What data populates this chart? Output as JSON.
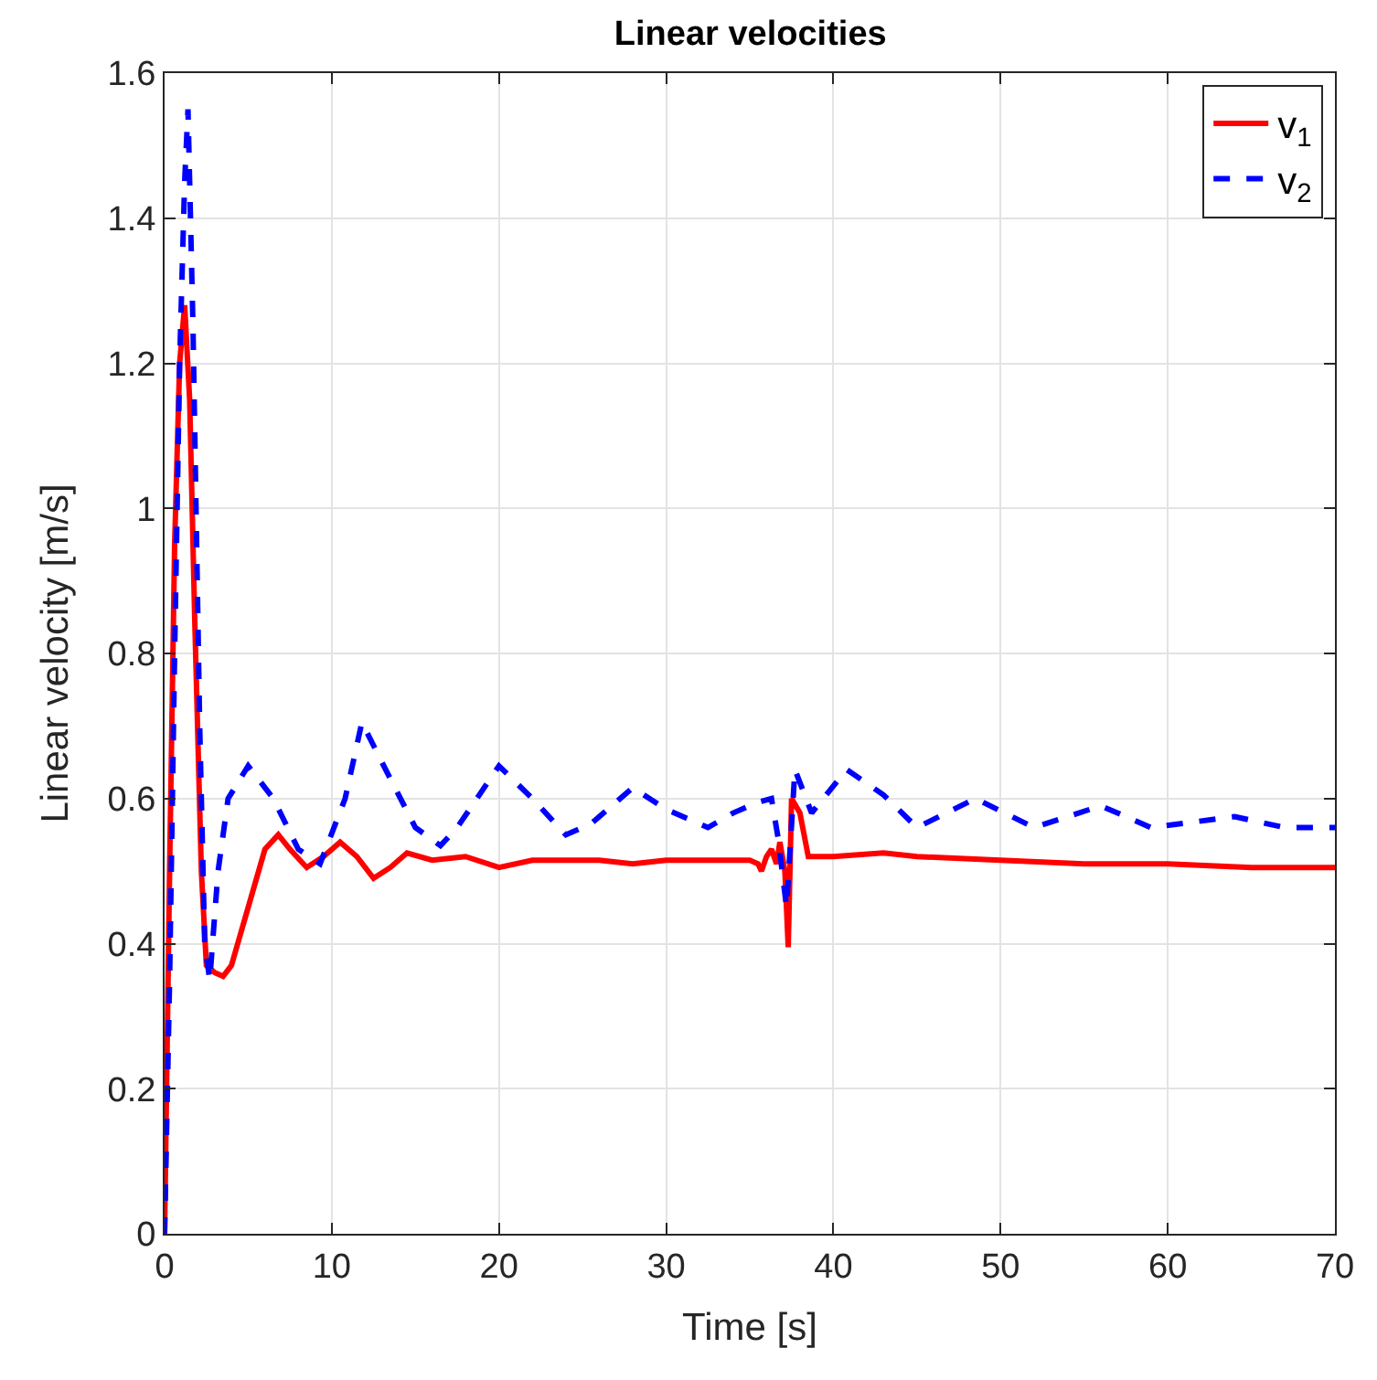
{
  "chart_data": {
    "type": "line",
    "title": "Linear velocities",
    "xlabel": "Time [s]",
    "ylabel": "Linear velocity [m/s]",
    "xlim": [
      0,
      70
    ],
    "ylim": [
      0,
      1.6
    ],
    "xticks": [
      0,
      10,
      20,
      30,
      40,
      50,
      60,
      70
    ],
    "yticks": [
      0,
      0.2,
      0.4,
      0.6,
      0.8,
      1,
      1.2,
      1.4,
      1.6
    ],
    "grid": true,
    "legend": "top right",
    "marker": "none",
    "series": [
      {
        "name": "v$_{1}$",
        "color": "#ff0000",
        "line_style": "solid",
        "x": [
          0,
          0.3,
          0.6,
          0.9,
          1.2,
          1.5,
          1.8,
          2.2,
          2.5,
          3,
          3.5,
          4,
          5,
          6,
          6.8,
          7.5,
          8.5,
          9.5,
          10.5,
          11.5,
          12.5,
          13.5,
          14.5,
          16,
          18,
          20,
          22,
          26,
          28,
          30,
          35,
          35.5,
          35.7,
          36,
          36.3,
          36.6,
          36.8,
          37.1,
          37.3,
          37.5,
          38,
          38.5,
          40,
          43,
          45,
          50,
          55,
          60,
          65,
          70
        ],
        "values": [
          0,
          0.5,
          0.95,
          1.2,
          1.28,
          1.15,
          0.85,
          0.5,
          0.37,
          0.36,
          0.355,
          0.37,
          0.45,
          0.53,
          0.55,
          0.53,
          0.505,
          0.52,
          0.54,
          0.52,
          0.49,
          0.505,
          0.525,
          0.515,
          0.52,
          0.505,
          0.515,
          0.515,
          0.51,
          0.515,
          0.515,
          0.51,
          0.5,
          0.52,
          0.53,
          0.51,
          0.54,
          0.5,
          0.395,
          0.6,
          0.58,
          0.52,
          0.52,
          0.525,
          0.52,
          0.515,
          0.51,
          0.51,
          0.505,
          0.505
        ]
      },
      {
        "name": "v$_{2}$",
        "color": "#0000ff",
        "line_style": "dashed",
        "x": [
          0,
          0.3,
          0.6,
          0.9,
          1.2,
          1.4,
          1.7,
          2.1,
          2.4,
          2.7,
          3.2,
          3.8,
          5,
          6.5,
          8,
          9.3,
          10.8,
          11.8,
          13,
          15,
          16.5,
          17.5,
          20,
          22,
          24,
          25.5,
          28,
          30,
          32.5,
          34,
          35.5,
          36.3,
          36.7,
          37.2,
          37.7,
          38.7,
          40.8,
          43,
          45,
          48.5,
          52,
          56,
          59,
          64,
          67,
          70
        ],
        "values": [
          0,
          0.35,
          0.8,
          1.2,
          1.45,
          1.55,
          1.25,
          0.7,
          0.4,
          0.35,
          0.5,
          0.6,
          0.645,
          0.6,
          0.53,
          0.51,
          0.6,
          0.705,
          0.65,
          0.56,
          0.535,
          0.56,
          0.645,
          0.6,
          0.55,
          0.565,
          0.615,
          0.585,
          0.56,
          0.58,
          0.595,
          0.6,
          0.545,
          0.45,
          0.64,
          0.58,
          0.64,
          0.605,
          0.56,
          0.6,
          0.56,
          0.59,
          0.56,
          0.575,
          0.56,
          0.56
        ]
      }
    ]
  }
}
